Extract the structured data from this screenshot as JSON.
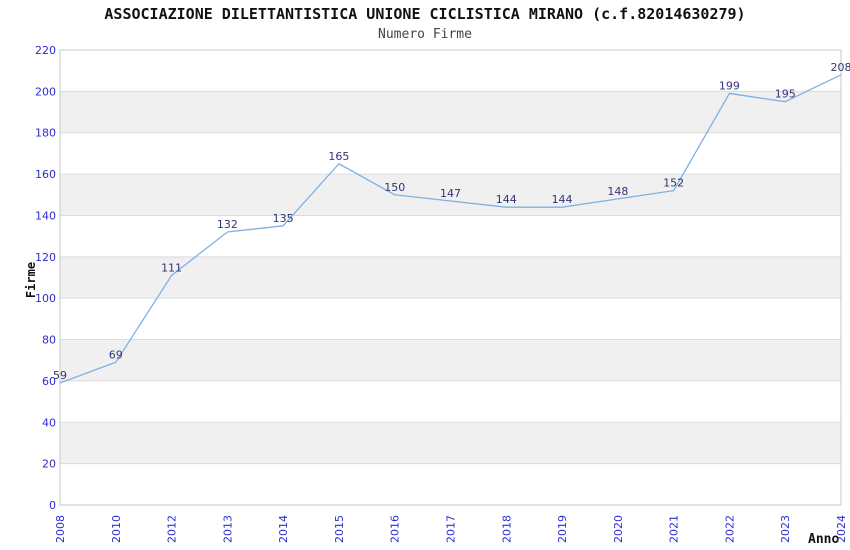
{
  "chart_data": {
    "type": "line",
    "title": "ASSOCIAZIONE DILETTANTISTICA UNIONE CICLISTICA MIRANO (c.f.82014630279)",
    "subtitle": "Numero Firme",
    "xlabel": "Anno",
    "ylabel": "Firme",
    "categories": [
      "2008",
      "2010",
      "2012",
      "2013",
      "2014",
      "2015",
      "2016",
      "2017",
      "2018",
      "2019",
      "2020",
      "2021",
      "2022",
      "2023",
      "2024"
    ],
    "series": [
      {
        "name": "Numero Firme",
        "values": [
          59,
          69,
          111,
          132,
          135,
          165,
          150,
          147,
          144,
          144,
          148,
          152,
          199,
          195,
          208
        ]
      }
    ],
    "ylim": [
      0,
      220
    ],
    "y_tick_step": 20,
    "x_tick_rotation": -90,
    "grid": "horizontal-bands-alternating",
    "legend": "none",
    "markers": "none",
    "colors": {
      "line": "#7fb0e4",
      "tick_label": "#2d2dd2",
      "data_label": "#333377",
      "band_fill": "#f0f0f0",
      "gridline": "#dcdcdc",
      "plot_border": "#c8c8c8",
      "background": "#ffffff"
    }
  }
}
